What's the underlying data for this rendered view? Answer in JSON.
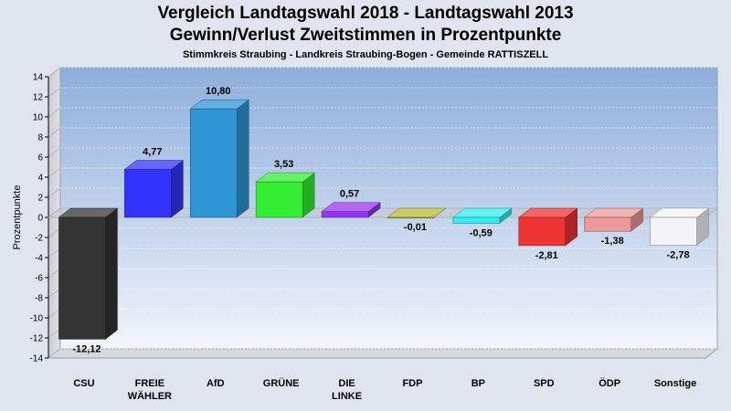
{
  "title_line1": "Vergleich Landtagswahl 2018 - Landtagswahl 2013",
  "title_line2": "Gewinn/Verlust Zweitstimmen in Prozentpunkte",
  "subtitle": "Stimmkreis Straubing - Landkreis Straubing-Bogen - Gemeinde RATTISZELL",
  "chart_data": {
    "type": "bar",
    "title": "Vergleich Landtagswahl 2018 - Landtagswahl 2013 Gewinn/Verlust Zweitstimmen in Prozentpunkte",
    "subtitle": "Stimmkreis Straubing - Landkreis Straubing-Bogen - Gemeinde RATTISZELL",
    "xlabel": "",
    "ylabel": "Prozentpunkte",
    "ylim": [
      -14,
      14
    ],
    "yticks": [
      14,
      12,
      10,
      8,
      6,
      4,
      2,
      0,
      -2,
      -4,
      -6,
      -8,
      -10,
      -12,
      -14
    ],
    "grid": true,
    "categories": [
      [
        "CSU"
      ],
      [
        "FREIE",
        "WÄHLER"
      ],
      [
        "AfD"
      ],
      [
        "GRÜNE"
      ],
      [
        "DIE",
        "LINKE"
      ],
      [
        "FDP"
      ],
      [
        "BP"
      ],
      [
        "SPD"
      ],
      [
        "ÖDP"
      ],
      [
        "Sonstige"
      ]
    ],
    "values": [
      -12.12,
      4.77,
      10.8,
      3.53,
      0.57,
      -0.01,
      -0.59,
      -2.81,
      -1.38,
      -2.78
    ],
    "value_labels": [
      "-12,12",
      "4,77",
      "10,80",
      "3,53",
      "0,57",
      "-0,01",
      "-0,59",
      "-2,81",
      "-1,38",
      "-2,78"
    ],
    "colors": [
      "#343434",
      "#3333ff",
      "#2f96d6",
      "#33ee33",
      "#9933ee",
      "#bbbb33",
      "#33eeee",
      "#ee3333",
      "#ee9999",
      "#f4f4f8"
    ]
  }
}
